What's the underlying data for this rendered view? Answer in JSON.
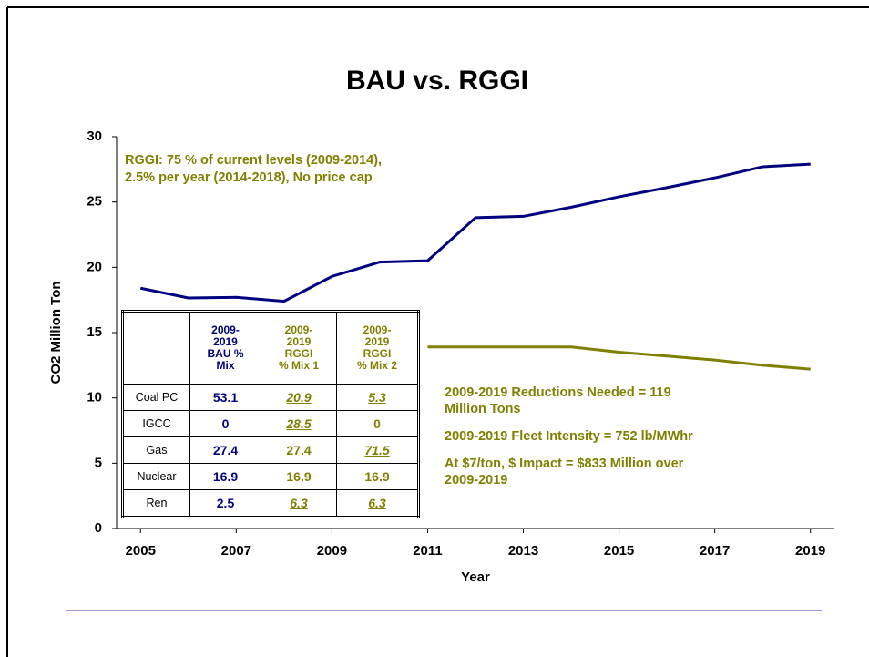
{
  "chart_data": {
    "type": "line",
    "title": "BAU vs. RGGI",
    "xlabel": "Year",
    "ylabel": "CO2 Million Ton",
    "x": [
      2005,
      2006,
      2007,
      2008,
      2009,
      2010,
      2011,
      2012,
      2013,
      2014,
      2015,
      2016,
      2017,
      2018,
      2019
    ],
    "series": [
      {
        "name": "BAU",
        "color": "#000080",
        "values": [
          18.4,
          17.65,
          17.7,
          17.4,
          19.3,
          20.4,
          20.5,
          23.8,
          23.9,
          24.6,
          25.4,
          26.1,
          26.85,
          27.7,
          27.9
        ]
      },
      {
        "name": "RGGI",
        "color": "#808000",
        "values": [
          null,
          null,
          null,
          null,
          null,
          null,
          13.9,
          13.9,
          13.9,
          13.9,
          13.5,
          13.2,
          12.9,
          12.5,
          12.2
        ]
      }
    ],
    "xlim": [
      2004.5,
      2019.5
    ],
    "xticks": [
      2005,
      2007,
      2009,
      2011,
      2013,
      2015,
      2017,
      2019
    ],
    "ylim": [
      0,
      30
    ],
    "yticks": [
      0,
      5,
      10,
      15,
      20,
      25,
      30
    ],
    "annotations": [
      "RGGI: 75 % of current levels (2009-2014),",
      "2.5% per year (2014-2018), No price cap",
      "2009-2019 Reductions Needed = 119",
      "Million Tons",
      "2009-2019 Fleet Intensity = 752 lb/MWhr",
      "At $7/ton, $ Impact = $833 Million over",
      "2009-2019"
    ]
  },
  "table": {
    "header": [
      "",
      "2009-\n2019\nBAU %\nMix",
      "2009-\n2019\nRGGI\n% Mix 1",
      "2009-\n2019\nRGGI\n% Mix 2"
    ],
    "rows": [
      [
        "Coal PC",
        "53.1",
        "20.9",
        "5.3"
      ],
      [
        "IGCC",
        "0",
        "28.5",
        "0"
      ],
      [
        "Gas",
        "27.4",
        "27.4",
        "71.5"
      ],
      [
        "Nuclear",
        "16.9",
        "16.9",
        "16.9"
      ],
      [
        "Ren",
        "2.5",
        "6.3",
        "6.3"
      ]
    ]
  }
}
